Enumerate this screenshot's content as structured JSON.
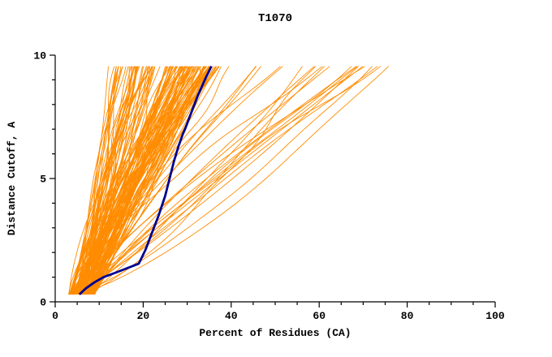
{
  "window": {
    "title": "T1070"
  },
  "colors": {
    "ensemble": "#ff8c00",
    "highlight": "#000090",
    "axis": "#000000",
    "background": "#ffffff"
  },
  "chart_data": {
    "type": "line",
    "title": "T1070",
    "xlabel": "Percent of Residues (CA)",
    "ylabel": "Distance Cutoff, A",
    "xlim": [
      0,
      100
    ],
    "ylim": [
      0,
      10
    ],
    "x_major_ticks": [
      0,
      20,
      40,
      60,
      80,
      100
    ],
    "x_minor_step": 5,
    "y_major_ticks": [
      0,
      5,
      10
    ],
    "y_minor_step": 1,
    "grid": false,
    "legend": "none",
    "description": "GDT-style cumulative plot: distance cutoff (A) vs percent of CA residues fit; ~150 orange prediction curves with one highlighted navy model curve",
    "ensemble": {
      "name": "prediction-models",
      "color": "#ff8c00",
      "count": 150,
      "seed": 1070,
      "y_start": 0.3,
      "y_end": 9.55,
      "y_step": 0.25,
      "start_x_range": [
        3,
        9
      ],
      "shape_exponent_range": [
        0.7,
        1.4
      ],
      "wiggle_amp_range": [
        0,
        1.3
      ],
      "top_x_mixture": [
        {
          "weight": 0.62,
          "type": "normal",
          "mean": 31,
          "sd": 4.5,
          "min": 21,
          "max": 47
        },
        {
          "weight": 0.24,
          "type": "uniform",
          "min": 12,
          "max": 23
        },
        {
          "weight": 0.14,
          "type": "uniform",
          "min": 45,
          "max": 76
        }
      ]
    },
    "series": [
      {
        "name": "highlighted-model",
        "color": "#000090",
        "width": 2.8,
        "points": [
          [
            5.5,
            0.3
          ],
          [
            7,
            0.55
          ],
          [
            9,
            0.8
          ],
          [
            11,
            1.0
          ],
          [
            14,
            1.2
          ],
          [
            19,
            1.55
          ],
          [
            20.5,
            2.1
          ],
          [
            22,
            2.8
          ],
          [
            23.5,
            3.5
          ],
          [
            25,
            4.3
          ],
          [
            26,
            5.0
          ],
          [
            27,
            5.7
          ],
          [
            28,
            6.3
          ],
          [
            29,
            6.8
          ],
          [
            29.5,
            7.0
          ],
          [
            31,
            7.7
          ],
          [
            32.5,
            8.4
          ],
          [
            34,
            9.0
          ],
          [
            35.5,
            9.55
          ]
        ]
      }
    ]
  }
}
